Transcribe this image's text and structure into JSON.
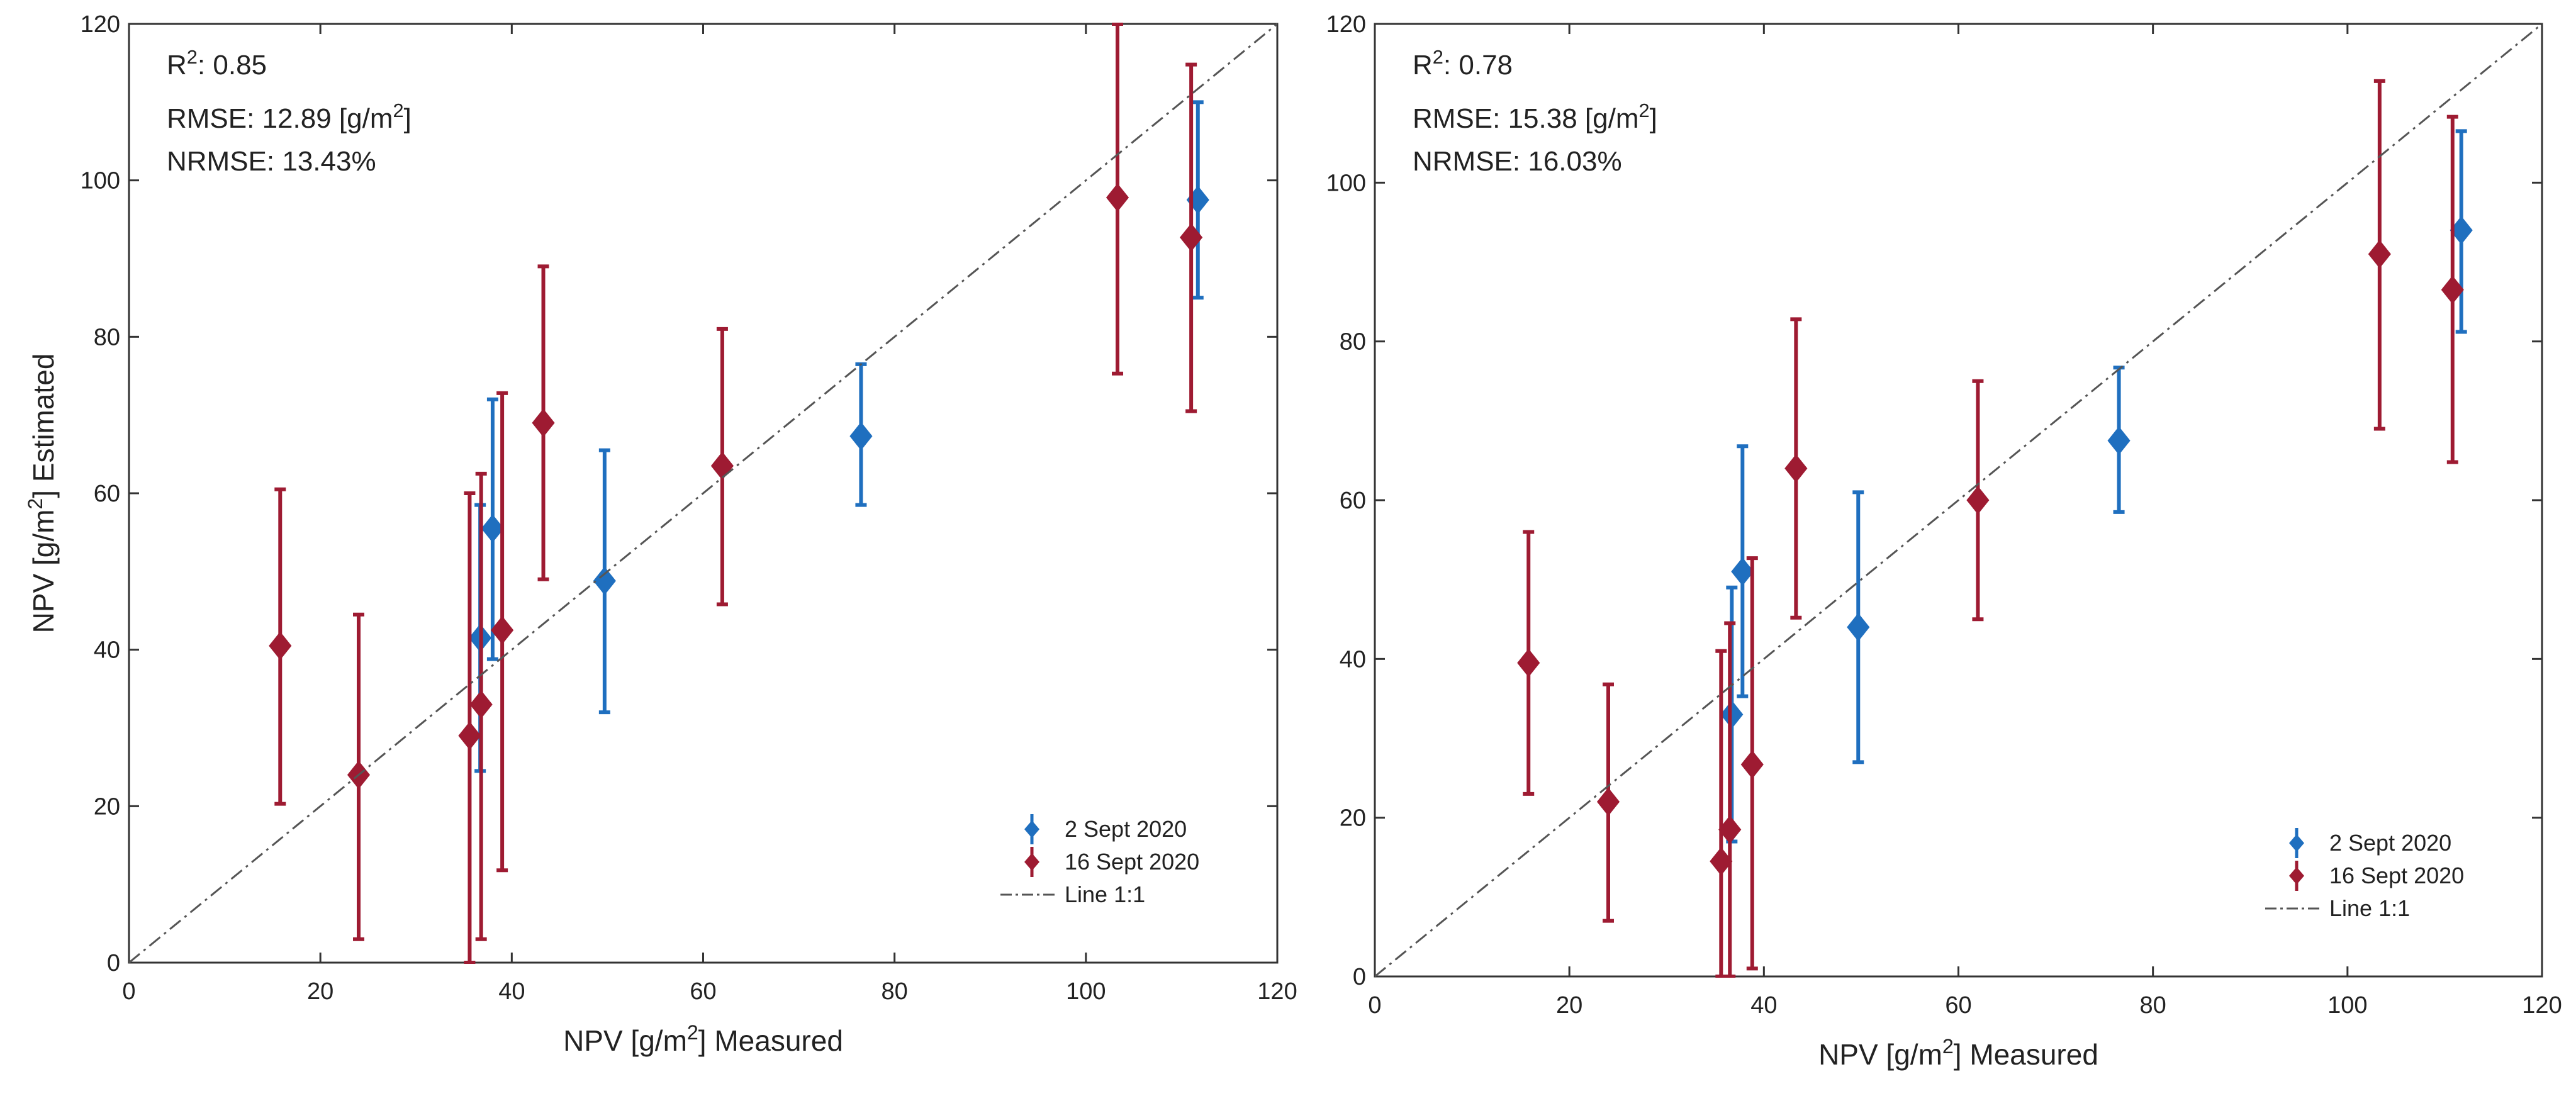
{
  "chart_data": [
    {
      "type": "scatter",
      "panel": "left",
      "xlabel": "NPV [g/m²] Measured",
      "ylabel": "NPV [g/m²] Estimated",
      "xlim": [
        0,
        120
      ],
      "ylim": [
        0,
        120
      ],
      "xticks": [
        0,
        20,
        40,
        60,
        80,
        100,
        120
      ],
      "yticks": [
        0,
        20,
        40,
        60,
        80,
        100,
        120
      ],
      "grid": false,
      "legend_position": "bottom-right",
      "stats": {
        "r2_label": "R²: 0.85",
        "rmse": "RMSE: 12.89 [g/m²]",
        "nrmse": "NRMSE: 13.43%"
      },
      "series": [
        {
          "name": "2 Sept 2020",
          "color": "#1f6fbf",
          "marker": "diamond",
          "points": [
            {
              "x": 36.7,
              "y": 41.5,
              "lo": 24.5,
              "hi": 58.5
            },
            {
              "x": 38.0,
              "y": 55.5,
              "lo": 38.8,
              "hi": 72.0
            },
            {
              "x": 49.7,
              "y": 48.8,
              "lo": 32.0,
              "hi": 65.5
            },
            {
              "x": 76.5,
              "y": 67.3,
              "lo": 58.5,
              "hi": 76.5
            },
            {
              "x": 111.7,
              "y": 97.5,
              "lo": 85.0,
              "hi": 110.0
            }
          ]
        },
        {
          "name": "16 Sept 2020",
          "color": "#9e1b32",
          "marker": "diamond",
          "points": [
            {
              "x": 15.8,
              "y": 40.5,
              "lo": 20.3,
              "hi": 60.5
            },
            {
              "x": 24.0,
              "y": 24.0,
              "lo": 3.0,
              "hi": 44.5
            },
            {
              "x": 35.6,
              "y": 29.0,
              "lo": 0.0,
              "hi": 60.0
            },
            {
              "x": 36.8,
              "y": 33.0,
              "lo": 3.0,
              "hi": 62.5
            },
            {
              "x": 39.0,
              "y": 42.5,
              "lo": 11.8,
              "hi": 72.8
            },
            {
              "x": 43.3,
              "y": 69.0,
              "lo": 49.0,
              "hi": 89.0
            },
            {
              "x": 62.0,
              "y": 63.5,
              "lo": 45.8,
              "hi": 81.0
            },
            {
              "x": 103.3,
              "y": 97.8,
              "lo": 75.3,
              "hi": 120.0
            },
            {
              "x": 111.0,
              "y": 92.7,
              "lo": 70.5,
              "hi": 114.8
            }
          ]
        },
        {
          "name": "Line 1:1",
          "type": "line",
          "color": "#555555",
          "style": "dash-dot",
          "x": [
            0,
            120
          ],
          "y": [
            0,
            120
          ]
        }
      ]
    },
    {
      "type": "scatter",
      "panel": "right",
      "xlabel": "NPV [g/m²] Measured",
      "ylabel": "",
      "xlim": [
        0,
        120
      ],
      "ylim": [
        0,
        120
      ],
      "xticks": [
        0,
        20,
        40,
        60,
        80,
        100,
        120
      ],
      "yticks": [
        0,
        20,
        40,
        60,
        80,
        100,
        120
      ],
      "grid": false,
      "legend_position": "bottom-right",
      "stats": {
        "r2_label": "R²: 0.78",
        "rmse": "RMSE: 15.38 [g/m²]",
        "nrmse": "NRMSE: 16.03%"
      },
      "series": [
        {
          "name": "2 Sept 2020",
          "color": "#1f6fbf",
          "marker": "diamond",
          "points": [
            {
              "x": 36.7,
              "y": 33.0,
              "lo": 17.0,
              "hi": 49.0
            },
            {
              "x": 37.8,
              "y": 51.0,
              "lo": 35.3,
              "hi": 66.8
            },
            {
              "x": 49.7,
              "y": 44.0,
              "lo": 27.0,
              "hi": 61.0
            },
            {
              "x": 76.5,
              "y": 67.5,
              "lo": 58.5,
              "hi": 76.7
            },
            {
              "x": 111.7,
              "y": 94.0,
              "lo": 81.2,
              "hi": 106.5
            }
          ]
        },
        {
          "name": "16 Sept 2020",
          "color": "#9e1b32",
          "marker": "diamond",
          "points": [
            {
              "x": 15.8,
              "y": 39.5,
              "lo": 23.0,
              "hi": 56.0
            },
            {
              "x": 24.0,
              "y": 22.0,
              "lo": 7.0,
              "hi": 36.8
            },
            {
              "x": 35.6,
              "y": 14.5,
              "lo": 0.0,
              "hi": 41.0
            },
            {
              "x": 36.5,
              "y": 18.5,
              "lo": 0.0,
              "hi": 44.5
            },
            {
              "x": 38.8,
              "y": 26.7,
              "lo": 1.0,
              "hi": 52.7
            },
            {
              "x": 43.3,
              "y": 64.0,
              "lo": 45.2,
              "hi": 82.8
            },
            {
              "x": 62.0,
              "y": 60.0,
              "lo": 45.0,
              "hi": 75.0
            },
            {
              "x": 103.3,
              "y": 91.0,
              "lo": 69.0,
              "hi": 112.8
            },
            {
              "x": 110.8,
              "y": 86.5,
              "lo": 64.8,
              "hi": 108.3
            }
          ]
        },
        {
          "name": "Line 1:1",
          "type": "line",
          "color": "#555555",
          "style": "dash-dot",
          "x": [
            0,
            120
          ],
          "y": [
            0,
            120
          ]
        }
      ]
    }
  ]
}
